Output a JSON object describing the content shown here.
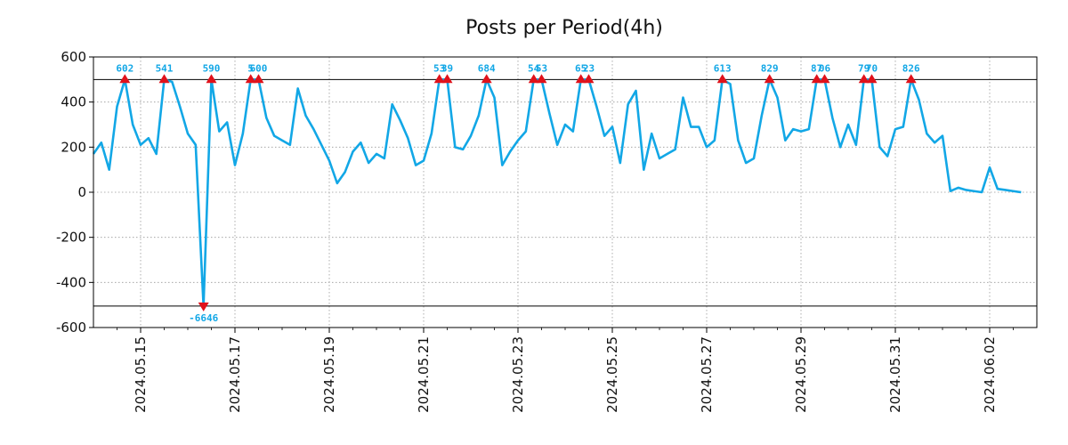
{
  "chart_data": {
    "type": "line",
    "title": "Posts per Period(4h)",
    "xlabel": "",
    "ylabel": "",
    "ylim": [
      -600,
      600
    ],
    "yticks": [
      600,
      400,
      200,
      0,
      -200,
      -400,
      -600
    ],
    "ytick_labels": [
      "600",
      "400",
      "200",
      "0",
      "-200",
      "-400",
      "-600"
    ],
    "x_start": "2024.05.14 00:00",
    "period_hours": 4,
    "xlim_hours": [
      0,
      480
    ],
    "xticks": [
      {
        "label": "2024.05.15",
        "hour": 24
      },
      {
        "label": "2024.05.17",
        "hour": 72
      },
      {
        "label": "2024.05.19",
        "hour": 120
      },
      {
        "label": "2024.05.21",
        "hour": 168
      },
      {
        "label": "2024.05.23",
        "hour": 216
      },
      {
        "label": "2024.05.25",
        "hour": 264
      },
      {
        "label": "2024.05.27",
        "hour": 312
      },
      {
        "label": "2024.05.29",
        "hour": 360
      },
      {
        "label": "2024.05.31",
        "hour": 408
      },
      {
        "label": "2024.06.02",
        "hour": 456
      }
    ],
    "upper_threshold": 500,
    "lower_threshold": -505,
    "line_color": "#12a7e6",
    "marker_color": "#e0121b",
    "label_color": "#12a7e6",
    "values": [
      170,
      220,
      100,
      380,
      500,
      300,
      210,
      240,
      170,
      500,
      490,
      380,
      260,
      210,
      -505,
      500,
      270,
      310,
      120,
      260,
      500,
      500,
      330,
      250,
      230,
      210,
      460,
      340,
      280,
      210,
      140,
      40,
      90,
      180,
      220,
      130,
      170,
      150,
      390,
      320,
      240,
      120,
      140,
      260,
      500,
      500,
      200,
      190,
      250,
      340,
      500,
      420,
      120,
      180,
      230,
      270,
      500,
      500,
      350,
      210,
      300,
      270,
      500,
      500,
      380,
      250,
      290,
      130,
      390,
      450,
      100,
      260,
      150,
      170,
      190,
      420,
      290,
      290,
      200,
      230,
      500,
      480,
      230,
      130,
      150,
      340,
      500,
      420,
      230,
      280,
      270,
      280,
      500,
      500,
      330,
      200,
      300,
      210,
      500,
      500,
      200,
      160,
      280,
      290,
      500,
      410,
      260,
      220,
      250,
      5,
      20,
      10,
      5,
      0,
      110,
      15,
      10,
      5,
      0
    ],
    "annotations": [
      {
        "index": 4,
        "label": "602",
        "kind": "high"
      },
      {
        "index": 9,
        "label": "541",
        "kind": "high"
      },
      {
        "index": 14,
        "label": "-6646",
        "kind": "low"
      },
      {
        "index": 15,
        "label": "590",
        "kind": "high"
      },
      {
        "index": 20,
        "label": "5",
        "kind": "high"
      },
      {
        "index": 21,
        "label": "600",
        "kind": "high"
      },
      {
        "index": 44,
        "label": "53",
        "kind": "high"
      },
      {
        "index": 45,
        "label": "39",
        "kind": "high"
      },
      {
        "index": 50,
        "label": "684",
        "kind": "high"
      },
      {
        "index": 56,
        "label": "54",
        "kind": "high"
      },
      {
        "index": 57,
        "label": "53",
        "kind": "high"
      },
      {
        "index": 62,
        "label": "65",
        "kind": "high"
      },
      {
        "index": 63,
        "label": "23",
        "kind": "high"
      },
      {
        "index": 80,
        "label": "613",
        "kind": "high"
      },
      {
        "index": 86,
        "label": "829",
        "kind": "high"
      },
      {
        "index": 92,
        "label": "87",
        "kind": "high"
      },
      {
        "index": 93,
        "label": "06",
        "kind": "high"
      },
      {
        "index": 98,
        "label": "79",
        "kind": "high"
      },
      {
        "index": 99,
        "label": "70",
        "kind": "high"
      },
      {
        "index": 104,
        "label": "826",
        "kind": "high"
      }
    ]
  }
}
